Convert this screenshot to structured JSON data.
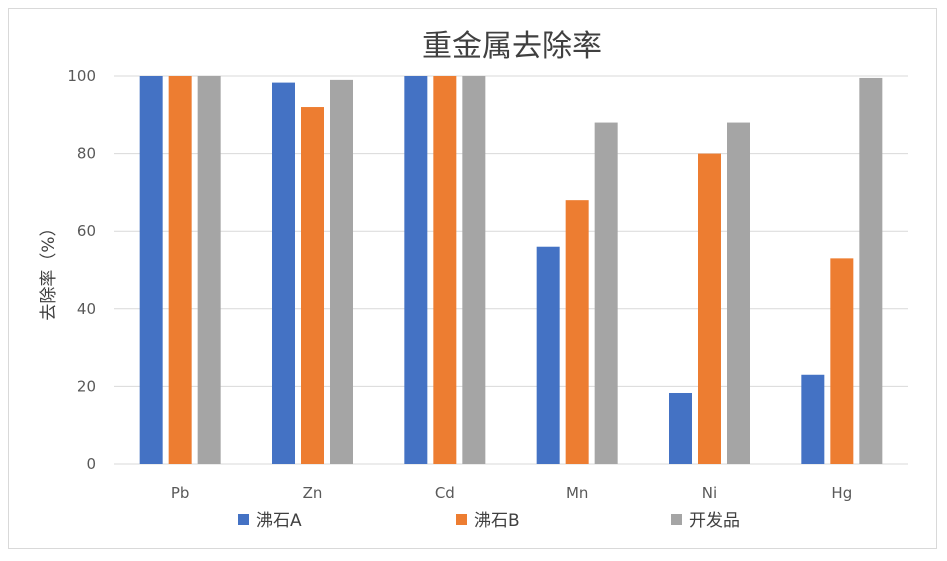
{
  "chart_data": {
    "type": "bar",
    "title": "重金属去除率",
    "xlabel": "",
    "ylabel": "去除率（%）",
    "ylim": [
      0,
      100
    ],
    "yticks": [
      0,
      20,
      40,
      60,
      80,
      100
    ],
    "grid": true,
    "legend_position": "bottom",
    "categories": [
      "Pb",
      "Zn",
      "Cd",
      "Mn",
      "Ni",
      "Hg"
    ],
    "series": [
      {
        "name": "沸石A",
        "color": "#4472c4",
        "values": [
          100,
          98.3,
          100,
          56,
          18.3,
          23
        ]
      },
      {
        "name": "沸石B",
        "color": "#ed7d31",
        "values": [
          100,
          92,
          100,
          68,
          80,
          53
        ]
      },
      {
        "name": "开发品",
        "color": "#a5a5a5",
        "values": [
          100,
          99,
          100,
          88,
          88,
          99.5
        ]
      }
    ]
  }
}
